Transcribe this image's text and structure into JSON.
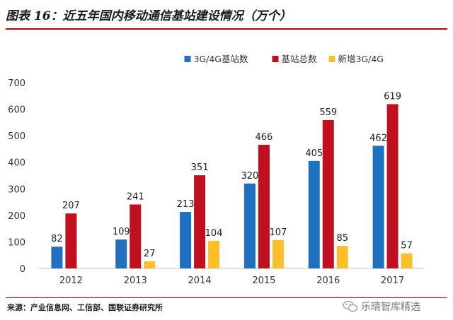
{
  "figure": {
    "title": "图表 16：近五年国内移动通信基站建设情况（万个）",
    "source": "来源：产业信息网、工信部、国联证券研究所",
    "watermark": "乐晴智库精选",
    "watermark_icon": "wechat-icon"
  },
  "chart_data": {
    "type": "bar",
    "title": "",
    "xlabel": "",
    "ylabel": "",
    "categories": [
      "2012",
      "2013",
      "2014",
      "2015",
      "2016",
      "2017"
    ],
    "ylim": [
      0,
      700
    ],
    "yticks": [
      0,
      100,
      200,
      300,
      400,
      500,
      600,
      700
    ],
    "grid": false,
    "legend_position": "top",
    "series": [
      {
        "name": "3G/4G基站数",
        "color": "#2070c0",
        "values": [
          82,
          109,
          213,
          320,
          405,
          462
        ],
        "labels": [
          "82",
          "109",
          "213",
          "320",
          "405",
          "462"
        ]
      },
      {
        "name": "基站总数",
        "color": "#c00f1e",
        "values": [
          207,
          241,
          351,
          466,
          559,
          619
        ],
        "labels": [
          "207",
          "241",
          "351",
          "466",
          "559",
          "619"
        ]
      },
      {
        "name": "新增3G/4G",
        "color": "#fcbf2a",
        "values": [
          null,
          27,
          104,
          107,
          85,
          57
        ],
        "labels": [
          "",
          "27",
          "104",
          "107",
          "85",
          "57"
        ]
      }
    ]
  }
}
